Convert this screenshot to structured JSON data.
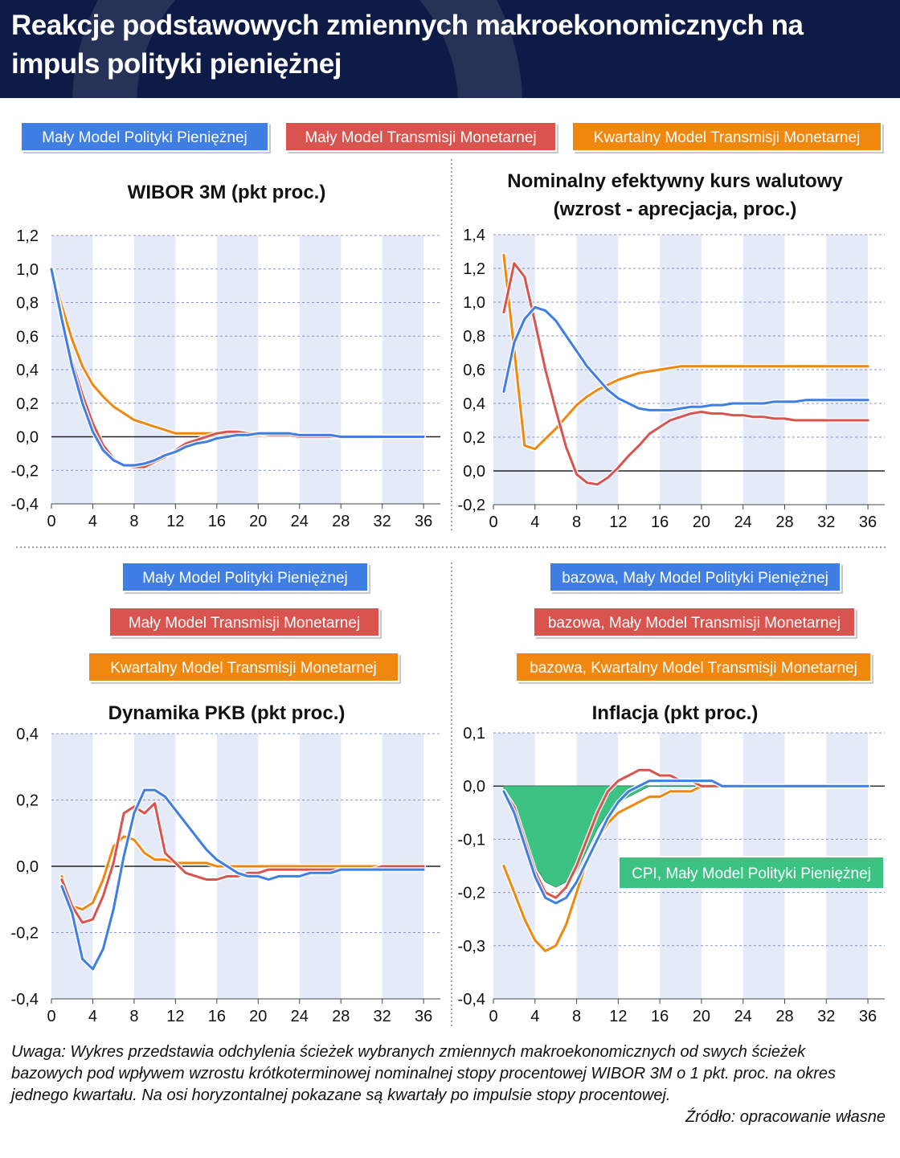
{
  "header": {
    "title": "Reakcje podstawowych zmiennych makroekonomicznych na impuls polityki pieniężnej"
  },
  "colors": {
    "header_bg": "#0e1b46",
    "blue": "#3f7ee3",
    "red": "#d9534f",
    "orange": "#f0870f",
    "green": "#3cc283",
    "band": "#e4eaf8"
  },
  "legend_top": [
    {
      "label": "Mały Model Polityki Pieniężnej",
      "color": "#3f7ee3"
    },
    {
      "label": "Mały Model Transmisji Monetarnej",
      "color": "#d9534f"
    },
    {
      "label": "Kwartalny Model Transmisji Monetarnej",
      "color": "#f0870f"
    }
  ],
  "legend_gdp": [
    {
      "label": "Mały Model Polityki Pieniężnej",
      "color": "#3f7ee3"
    },
    {
      "label": "Mały Model Transmisji Monetarnej",
      "color": "#d9534f"
    },
    {
      "label": "Kwartalny Model Transmisji Monetarnej",
      "color": "#f0870f"
    }
  ],
  "legend_inflation": [
    {
      "label": "bazowa, Mały Model Polityki Pieniężnej",
      "color": "#3f7ee3"
    },
    {
      "label": "bazowa, Mały Model Transmisji Monetarnej",
      "color": "#d9534f"
    },
    {
      "label": "bazowa, Kwartalny Model Transmisji Monetarnej",
      "color": "#f0870f"
    }
  ],
  "chart_data": [
    {
      "type": "line",
      "title": "WIBOR 3M (pkt proc.)",
      "ylim": [
        -0.4,
        1.2
      ],
      "yticks": [
        -0.4,
        -0.2,
        0.0,
        0.2,
        0.4,
        0.6,
        0.8,
        1.0,
        1.2
      ],
      "xticks": [
        0,
        4,
        8,
        12,
        16,
        20,
        24,
        28,
        32,
        36
      ],
      "xlim": [
        0,
        37
      ],
      "x": [
        0,
        1,
        2,
        3,
        4,
        5,
        6,
        7,
        8,
        9,
        10,
        11,
        12,
        13,
        14,
        15,
        16,
        17,
        18,
        19,
        20,
        21,
        22,
        23,
        24,
        25,
        26,
        27,
        28,
        29,
        30,
        31,
        32,
        33,
        34,
        35,
        36
      ],
      "series": [
        {
          "name": "Mały Model Polityki Pieniężnej",
          "color": "#3f7ee3",
          "values": [
            1.0,
            0.7,
            0.42,
            0.2,
            0.03,
            -0.08,
            -0.14,
            -0.17,
            -0.17,
            -0.16,
            -0.14,
            -0.11,
            -0.09,
            -0.06,
            -0.04,
            -0.03,
            -0.01,
            0.0,
            0.01,
            0.01,
            0.02,
            0.02,
            0.02,
            0.02,
            0.01,
            0.01,
            0.01,
            0.01,
            0.0,
            0.0,
            0.0,
            0.0,
            0.0,
            0.0,
            0.0,
            0.0,
            0.0
          ]
        },
        {
          "name": "Mały Model Transmisji Monetarnej",
          "color": "#d9534f",
          "values": [
            1.0,
            0.72,
            0.45,
            0.25,
            0.08,
            -0.05,
            -0.13,
            -0.17,
            -0.18,
            -0.18,
            -0.15,
            -0.12,
            -0.08,
            -0.04,
            -0.02,
            0.0,
            0.02,
            0.03,
            0.03,
            0.02,
            0.02,
            0.01,
            0.01,
            0.01,
            0.0,
            0.0,
            0.0,
            0.0,
            0.0,
            0.0,
            0.0,
            0.0,
            0.0,
            0.0,
            0.0,
            0.0,
            0.0
          ]
        },
        {
          "name": "Kwartalny Model Transmisji Monetarnej",
          "color": "#f0870f",
          "values": [
            1.0,
            0.78,
            0.58,
            0.42,
            0.31,
            0.24,
            0.18,
            0.14,
            0.1,
            0.08,
            0.06,
            0.04,
            0.02,
            0.02,
            0.02,
            0.02,
            0.02,
            0.01,
            0.01,
            0.01,
            0.01,
            0.01,
            0.01,
            0.01,
            0.01,
            0.0,
            0.0,
            0.0,
            0.0,
            0.0,
            0.0,
            0.0,
            0.0,
            0.0,
            0.0,
            0.0,
            0.0
          ]
        }
      ]
    },
    {
      "type": "line",
      "title": "Nominalny efektywny kurs walutowy (wzrost - aprecjacja, proc.)",
      "ylim": [
        -0.2,
        1.4
      ],
      "yticks": [
        -0.2,
        0.0,
        0.2,
        0.4,
        0.6,
        0.8,
        1.0,
        1.2,
        1.4
      ],
      "xticks": [
        0,
        4,
        8,
        12,
        16,
        20,
        24,
        28,
        32,
        36
      ],
      "xlim": [
        0,
        37
      ],
      "x": [
        1,
        2,
        3,
        4,
        5,
        6,
        7,
        8,
        9,
        10,
        11,
        12,
        13,
        14,
        15,
        16,
        17,
        18,
        19,
        20,
        21,
        22,
        23,
        24,
        25,
        26,
        27,
        28,
        29,
        30,
        31,
        32,
        33,
        34,
        35,
        36
      ],
      "series": [
        {
          "name": "Mały Model Polityki Pieniężnej",
          "color": "#3f7ee3",
          "values": [
            0.47,
            0.76,
            0.9,
            0.97,
            0.95,
            0.89,
            0.8,
            0.71,
            0.62,
            0.55,
            0.48,
            0.43,
            0.4,
            0.37,
            0.36,
            0.36,
            0.36,
            0.37,
            0.38,
            0.38,
            0.39,
            0.39,
            0.4,
            0.4,
            0.4,
            0.4,
            0.41,
            0.41,
            0.41,
            0.42,
            0.42,
            0.42,
            0.42,
            0.42,
            0.42,
            0.42
          ]
        },
        {
          "name": "Mały Model Transmisji Monetarnej",
          "color": "#d9534f",
          "values": [
            0.94,
            1.23,
            1.15,
            0.88,
            0.6,
            0.36,
            0.14,
            -0.02,
            -0.07,
            -0.08,
            -0.04,
            0.02,
            0.09,
            0.15,
            0.22,
            0.26,
            0.3,
            0.32,
            0.34,
            0.35,
            0.34,
            0.34,
            0.33,
            0.33,
            0.32,
            0.32,
            0.31,
            0.31,
            0.3,
            0.3,
            0.3,
            0.3,
            0.3,
            0.3,
            0.3,
            0.3
          ]
        },
        {
          "name": "Kwartalny Model Transmisji Monetarnej",
          "color": "#f0870f",
          "values": [
            1.28,
            0.72,
            0.15,
            0.13,
            0.19,
            0.25,
            0.32,
            0.39,
            0.44,
            0.48,
            0.51,
            0.54,
            0.56,
            0.58,
            0.59,
            0.6,
            0.61,
            0.62,
            0.62,
            0.62,
            0.62,
            0.62,
            0.62,
            0.62,
            0.62,
            0.62,
            0.62,
            0.62,
            0.62,
            0.62,
            0.62,
            0.62,
            0.62,
            0.62,
            0.62,
            0.62
          ]
        }
      ]
    },
    {
      "type": "line",
      "title": "Dynamika PKB (pkt proc.)",
      "ylim": [
        -0.4,
        0.4
      ],
      "yticks": [
        -0.4,
        -0.2,
        0.0,
        0.2,
        0.4
      ],
      "xticks": [
        0,
        4,
        8,
        12,
        16,
        20,
        24,
        28,
        32,
        36
      ],
      "xlim": [
        0,
        37
      ],
      "x": [
        1,
        2,
        3,
        4,
        5,
        6,
        7,
        8,
        9,
        10,
        11,
        12,
        13,
        14,
        15,
        16,
        17,
        18,
        19,
        20,
        21,
        22,
        23,
        24,
        25,
        26,
        27,
        28,
        29,
        30,
        31,
        32,
        33,
        34,
        35,
        36
      ],
      "series": [
        {
          "name": "Mały Model Polityki Pieniężnej",
          "color": "#3f7ee3",
          "values": [
            -0.06,
            -0.14,
            -0.28,
            -0.31,
            -0.25,
            -0.13,
            0.03,
            0.16,
            0.23,
            0.23,
            0.21,
            0.17,
            0.13,
            0.09,
            0.05,
            0.02,
            0.0,
            -0.02,
            -0.03,
            -0.03,
            -0.04,
            -0.03,
            -0.03,
            -0.03,
            -0.02,
            -0.02,
            -0.02,
            -0.01,
            -0.01,
            -0.01,
            -0.01,
            -0.01,
            -0.01,
            -0.01,
            -0.01,
            -0.01
          ]
        },
        {
          "name": "Mały Model Transmisji Monetarnej",
          "color": "#d9534f",
          "values": [
            -0.04,
            -0.12,
            -0.17,
            -0.16,
            -0.09,
            0.01,
            0.16,
            0.18,
            0.16,
            0.19,
            0.04,
            0.01,
            -0.02,
            -0.03,
            -0.04,
            -0.04,
            -0.03,
            -0.03,
            -0.02,
            -0.02,
            -0.01,
            -0.01,
            -0.01,
            -0.01,
            -0.01,
            -0.01,
            -0.01,
            -0.01,
            -0.01,
            -0.01,
            -0.01,
            0.0,
            0.0,
            0.0,
            0.0,
            0.0
          ]
        },
        {
          "name": "Kwartalny Model Transmisji Monetarnej",
          "color": "#f0870f",
          "values": [
            -0.03,
            -0.12,
            -0.13,
            -0.11,
            -0.04,
            0.06,
            0.09,
            0.08,
            0.04,
            0.02,
            0.02,
            0.01,
            0.01,
            0.01,
            0.01,
            0.0,
            0.0,
            0.0,
            0.0,
            0.0,
            0.0,
            0.0,
            0.0,
            0.0,
            0.0,
            0.0,
            0.0,
            0.0,
            0.0,
            0.0,
            0.0,
            0.0,
            0.0,
            0.0,
            0.0,
            0.0
          ]
        }
      ]
    },
    {
      "type": "line",
      "title": "Inflacja (pkt proc.)",
      "ylim": [
        -0.4,
        0.1
      ],
      "yticks": [
        -0.4,
        -0.3,
        -0.2,
        -0.1,
        0.0,
        0.1
      ],
      "xticks": [
        0,
        4,
        8,
        12,
        16,
        20,
        24,
        28,
        32,
        36
      ],
      "xlim": [
        0,
        37
      ],
      "x": [
        1,
        2,
        3,
        4,
        5,
        6,
        7,
        8,
        9,
        10,
        11,
        12,
        13,
        14,
        15,
        16,
        17,
        18,
        19,
        20,
        21,
        22,
        23,
        24,
        25,
        26,
        27,
        28,
        29,
        30,
        31,
        32,
        33,
        34,
        35,
        36
      ],
      "area": {
        "name": "CPI, Mały Model Polityki Pieniężnej",
        "color": "#3cc283",
        "values": [
          -0.01,
          -0.05,
          -0.09,
          -0.15,
          -0.18,
          -0.19,
          -0.18,
          -0.16,
          -0.12,
          -0.08,
          -0.05,
          -0.03,
          -0.02,
          -0.01,
          0.0,
          0.0,
          0.0,
          0.0,
          0.0,
          0.0,
          0.0,
          0.0,
          0.0,
          0.0,
          0.0,
          0.0,
          0.0,
          0.0,
          0.0,
          0.0,
          0.0,
          0.0,
          0.0,
          0.0,
          0.0,
          0.0
        ]
      },
      "series": [
        {
          "name": "bazowa, Mały Model Polityki Pieniężnej",
          "color": "#3f7ee3",
          "values": [
            -0.01,
            -0.05,
            -0.11,
            -0.17,
            -0.21,
            -0.22,
            -0.21,
            -0.18,
            -0.14,
            -0.1,
            -0.06,
            -0.03,
            -0.01,
            0.0,
            0.01,
            0.01,
            0.01,
            0.01,
            0.01,
            0.01,
            0.01,
            0.0,
            0.0,
            0.0,
            0.0,
            0.0,
            0.0,
            0.0,
            0.0,
            0.0,
            0.0,
            0.0,
            0.0,
            0.0,
            0.0,
            0.0
          ]
        },
        {
          "name": "bazowa, Mały Model Transmisji Monetarnej",
          "color": "#d9534f",
          "values": [
            -0.01,
            -0.04,
            -0.1,
            -0.16,
            -0.2,
            -0.21,
            -0.19,
            -0.15,
            -0.1,
            -0.05,
            -0.01,
            0.01,
            0.02,
            0.03,
            0.03,
            0.02,
            0.02,
            0.01,
            0.01,
            0.0,
            0.0,
            0.0,
            0.0,
            0.0,
            0.0,
            0.0,
            0.0,
            0.0,
            0.0,
            0.0,
            0.0,
            0.0,
            0.0,
            0.0,
            0.0,
            0.0
          ]
        },
        {
          "name": "bazowa, Kwartalny Model Transmisji Monetarnej",
          "color": "#f0870f",
          "values": [
            -0.15,
            -0.2,
            -0.25,
            -0.29,
            -0.31,
            -0.3,
            -0.26,
            -0.2,
            -0.14,
            -0.1,
            -0.07,
            -0.05,
            -0.04,
            -0.03,
            -0.02,
            -0.02,
            -0.01,
            -0.01,
            -0.01,
            0.0,
            0.0,
            0.0,
            0.0,
            0.0,
            0.0,
            0.0,
            0.0,
            0.0,
            0.0,
            0.0,
            0.0,
            0.0,
            0.0,
            0.0,
            0.0,
            0.0
          ]
        }
      ]
    }
  ],
  "footer": {
    "note": "Uwaga: Wykres przedstawia odchylenia ścieżek wybranych zmiennych makroekonomicznych od swych ścieżek bazowych pod wpływem wzrostu krótkoterminowej nominalnej stopy procentowej WIBOR 3M o 1 pkt. proc. na okres jednego kwartału. Na osi horyzontalnej pokazane są kwartały po impulsie stopy procentowej.",
    "source": "Źródło: opracowanie własne"
  }
}
